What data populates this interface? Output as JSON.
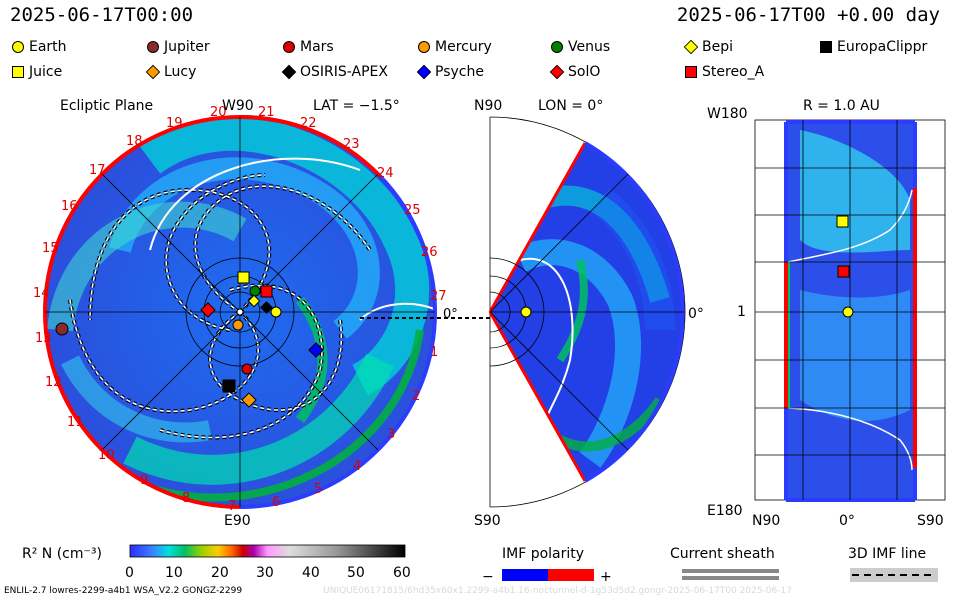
{
  "header": {
    "left_time": "2025-06-17T00:00",
    "right_time": "2025-06-17T00 +0.00 day"
  },
  "legend": [
    {
      "name": "Earth",
      "shape": "circle",
      "color": "#ffff00"
    },
    {
      "name": "Jupiter",
      "shape": "circle",
      "color": "#8b2a2a"
    },
    {
      "name": "Mars",
      "shape": "circle",
      "color": "#dd0000"
    },
    {
      "name": "Mercury",
      "shape": "circle",
      "color": "#ff9900"
    },
    {
      "name": "Venus",
      "shape": "circle",
      "color": "#008000"
    },
    {
      "name": "Bepi",
      "shape": "diamond",
      "color": "#ffff00"
    },
    {
      "name": "EuropaClippr",
      "shape": "square",
      "color": "#000000"
    },
    {
      "name": "Juice",
      "shape": "square",
      "color": "#ffff00"
    },
    {
      "name": "Lucy",
      "shape": "diamond",
      "color": "#ff9900"
    },
    {
      "name": "OSIRIS-APEX",
      "shape": "diamond",
      "color": "#000000"
    },
    {
      "name": "Psyche",
      "shape": "diamond",
      "color": "#0000ff"
    },
    {
      "name": "SolO",
      "shape": "diamond",
      "color": "#ff0000"
    },
    {
      "name": "Stereo_A",
      "shape": "square",
      "color": "#ff0000"
    }
  ],
  "panels": {
    "ecliptic": {
      "title": "Ecliptic Plane",
      "lat_label": "LAT = −1.5°",
      "top_label": "W90",
      "bottom_label": "E90",
      "right_label": "0°",
      "left_label": "1",
      "carrington_ticks": [
        "20",
        "21",
        "22",
        "23",
        "24",
        "25",
        "26",
        "27",
        "1",
        "2",
        "3",
        "4",
        "5",
        "6",
        "7",
        "8",
        "9",
        "10",
        "11",
        "12",
        "13",
        "14",
        "15",
        "16",
        "17",
        "18",
        "19"
      ]
    },
    "meridional": {
      "top_label": "N90",
      "lon_label": "LON = 0°",
      "right_label": "0°",
      "bottom_label": "S90"
    },
    "radial": {
      "title": "R = 1.0 AU",
      "top_left": "W180",
      "mid_left": "1",
      "bottom_left": "E180",
      "x_labels": [
        "N90",
        "0°",
        "S90"
      ]
    }
  },
  "colorbar": {
    "label": "R² N (cm⁻³)",
    "ticks": [
      "0",
      "10",
      "20",
      "30",
      "40",
      "50",
      "60"
    ],
    "range": [
      0,
      60
    ]
  },
  "imf": {
    "title": "IMF polarity",
    "minus": "−",
    "plus": "+",
    "colors": {
      "negative": "#0000ff",
      "positive": "#ff0000"
    }
  },
  "current_sheath": {
    "title": "Current sheath"
  },
  "imf_line": {
    "title": "3D IMF line"
  },
  "footer": {
    "left": "ENLIL-2.7 lowres-2299-a4b1 WSA_V2.2 GONGZ-2299",
    "right": "UNIQUE06171815/6hd35x60x1.2299-a4b1.16-noctunnel-d-1g53d5d2.gongr-2025-06-17T00  2025-06-17"
  },
  "chart_data": {
    "type": "heatmap",
    "title": "",
    "colorbar_label": "R² N (cm⁻³)",
    "colorbar_range": [
      0,
      60
    ],
    "grid": true,
    "positions_au": [
      {
        "name": "Earth",
        "r_au": 1.0,
        "lon_deg": 0
      },
      {
        "name": "Jupiter",
        "r_au": 5.2,
        "lon_deg": 186
      },
      {
        "name": "Mars",
        "r_au": 0.9,
        "lon_deg": 260
      },
      {
        "name": "Mercury",
        "r_au": 0.3,
        "lon_deg": 275
      }
    ]
  }
}
